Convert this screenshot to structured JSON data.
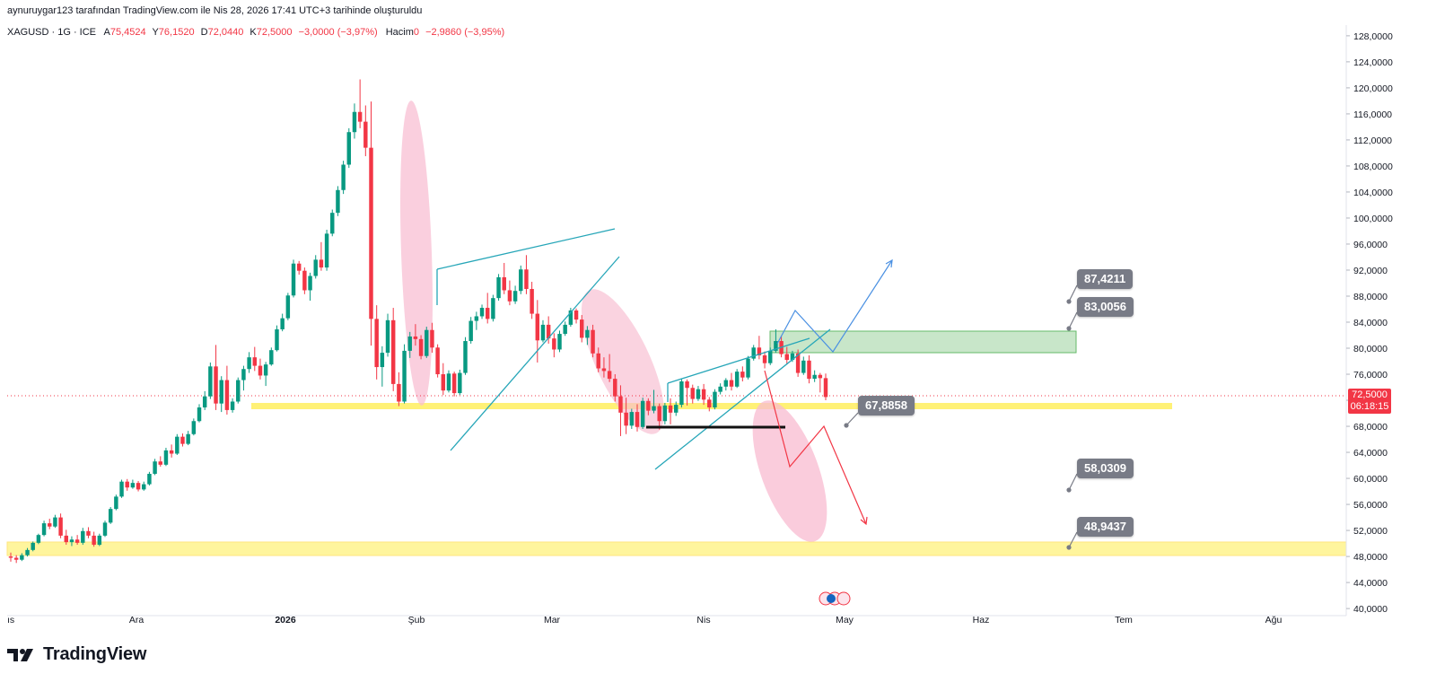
{
  "header": {
    "credit": "aynuruygar123 tarafından TradingView.com ile Nis 28, 2026 17:41 UTC+3 tarihinde oluşturuldu"
  },
  "legend": {
    "symbol": "XAGUSD · 1G · ICE",
    "open_label": "A",
    "open": "75,4524",
    "high_label": "Y",
    "high": "76,1520",
    "low_label": "D",
    "low": "72,0440",
    "close_label": "K",
    "close": "72,5000",
    "change": "−3,0000 (−3,97%)",
    "volume_label": "Hacim",
    "volume": "0",
    "volume_change": "−2,9860 (−3,95%)"
  },
  "price_tag": {
    "price": "72,5000",
    "countdown": "06:18:15"
  },
  "callouts": {
    "c1": "87,4211",
    "c2": "83,0056",
    "c3": "67,8858",
    "c4": "58,0309",
    "c5": "48,9437"
  },
  "brand": {
    "name": "TradingView"
  },
  "colors": {
    "up": "#089981",
    "down": "#f23645",
    "yellow_zone": "#fff176",
    "green_zone": "#c8e6c9",
    "pink_ellipse": "#f8bbd0",
    "trend_teal": "#26a6b8",
    "arrow_blue": "#4a90e2",
    "arrow_red": "#f23645"
  },
  "chart_data": {
    "type": "candlestick",
    "y_ticks": [
      "128,0000",
      "124,0000",
      "120,0000",
      "116,0000",
      "112,0000",
      "108,0000",
      "104,0000",
      "100,0000",
      "96,0000",
      "92,0000",
      "88,0000",
      "84,0000",
      "80,0000",
      "76,0000",
      "72,0000",
      "68,0000",
      "64,0000",
      "60,0000",
      "56,0000",
      "52,0000",
      "48,0000",
      "44,0000",
      "40,0000"
    ],
    "x_ticks": [
      "ıs",
      "Ara",
      "2026",
      "Şub",
      "Mar",
      "Nis",
      "May",
      "Haz",
      "Tem",
      "Ağu"
    ],
    "ylim": [
      38.5,
      129.5
    ],
    "last_price": 72.5,
    "levels": {
      "yellow_upper": 71,
      "yellow_lower": 49,
      "green_zone": [
        79.3,
        82.5
      ]
    },
    "candles": [
      [
        48.0,
        48.6,
        47.2,
        47.8
      ],
      [
        47.8,
        48.2,
        47.0,
        47.5
      ],
      [
        47.5,
        48.5,
        47.3,
        48.2
      ],
      [
        48.2,
        49.3,
        48.0,
        49.0
      ],
      [
        49.0,
        50.3,
        48.8,
        50.1
      ],
      [
        50.1,
        51.5,
        49.9,
        51.3
      ],
      [
        51.3,
        53.5,
        51.1,
        53.1
      ],
      [
        53.1,
        53.8,
        52.2,
        52.6
      ],
      [
        52.6,
        54.4,
        52.4,
        54.0
      ],
      [
        54.0,
        54.6,
        50.8,
        51.2
      ],
      [
        51.2,
        52.1,
        49.8,
        50.2
      ],
      [
        50.2,
        51.1,
        49.6,
        50.6
      ],
      [
        50.6,
        51.3,
        49.8,
        50.1
      ],
      [
        50.1,
        52.4,
        49.8,
        51.9
      ],
      [
        51.9,
        52.5,
        50.8,
        51.2
      ],
      [
        51.2,
        51.8,
        49.5,
        49.8
      ],
      [
        49.8,
        51.5,
        49.6,
        51.2
      ],
      [
        51.2,
        53.5,
        51.0,
        53.2
      ],
      [
        53.2,
        55.6,
        53.0,
        55.3
      ],
      [
        55.3,
        57.5,
        55.1,
        57.2
      ],
      [
        57.2,
        59.8,
        57.0,
        59.5
      ],
      [
        59.5,
        59.9,
        58.1,
        58.6
      ],
      [
        58.6,
        59.8,
        58.4,
        59.3
      ],
      [
        59.3,
        59.6,
        58.0,
        58.3
      ],
      [
        58.3,
        59.5,
        58.1,
        59.1
      ],
      [
        59.1,
        61.0,
        58.9,
        60.7
      ],
      [
        60.7,
        63.0,
        60.5,
        62.6
      ],
      [
        62.6,
        63.4,
        61.8,
        62.1
      ],
      [
        62.1,
        64.7,
        61.9,
        64.3
      ],
      [
        64.3,
        65.2,
        63.2,
        63.8
      ],
      [
        63.8,
        66.8,
        63.6,
        66.4
      ],
      [
        66.4,
        66.9,
        64.9,
        65.3
      ],
      [
        65.3,
        67.3,
        65.1,
        66.8
      ],
      [
        66.8,
        69.2,
        66.6,
        68.8
      ],
      [
        68.8,
        71.4,
        68.6,
        70.9
      ],
      [
        70.9,
        73.4,
        70.5,
        72.6
      ],
      [
        72.6,
        77.8,
        72.2,
        77.2
      ],
      [
        77.2,
        80.5,
        70.5,
        71.5
      ],
      [
        71.5,
        75.7,
        70.2,
        75.1
      ],
      [
        75.1,
        77.3,
        69.8,
        70.5
      ],
      [
        70.5,
        72.3,
        70.1,
        71.8
      ],
      [
        71.8,
        75.5,
        71.5,
        75.1
      ],
      [
        75.1,
        77.3,
        73.5,
        76.8
      ],
      [
        76.8,
        79.4,
        76.2,
        78.6
      ],
      [
        78.6,
        80.2,
        76.5,
        77.3
      ],
      [
        77.3,
        78.4,
        75.2,
        75.8
      ],
      [
        75.8,
        77.9,
        74.2,
        77.5
      ],
      [
        77.5,
        80.1,
        77.3,
        79.7
      ],
      [
        79.7,
        83.5,
        79.5,
        82.9
      ],
      [
        82.9,
        85.3,
        82.6,
        84.6
      ],
      [
        84.6,
        88.5,
        84.3,
        88.1
      ],
      [
        88.1,
        93.6,
        87.8,
        93.0
      ],
      [
        93.0,
        93.4,
        91.3,
        91.9
      ],
      [
        91.9,
        92.4,
        88.3,
        88.9
      ],
      [
        88.9,
        91.6,
        87.3,
        91.1
      ],
      [
        91.1,
        94.3,
        90.7,
        93.6
      ],
      [
        93.6,
        96.3,
        91.9,
        92.4
      ],
      [
        92.4,
        98.2,
        91.9,
        97.6
      ],
      [
        97.6,
        101.3,
        97.2,
        100.8
      ],
      [
        100.8,
        104.9,
        100.3,
        104.3
      ],
      [
        104.3,
        108.8,
        103.7,
        108.2
      ],
      [
        108.2,
        113.8,
        107.7,
        113.2
      ],
      [
        113.2,
        117.6,
        112.2,
        116.3
      ],
      [
        116.3,
        121.3,
        113.8,
        114.8
      ],
      [
        114.8,
        117.3,
        109.5,
        110.8
      ],
      [
        110.8,
        117.9,
        80.4,
        84.5
      ],
      [
        84.5,
        86.6,
        75.2,
        77.1
      ],
      [
        77.1,
        80.3,
        74.1,
        79.3
      ],
      [
        79.3,
        85.3,
        78.7,
        84.3
      ],
      [
        84.3,
        86.2,
        73.4,
        74.5
      ],
      [
        74.5,
        76.3,
        71.1,
        71.8
      ],
      [
        71.8,
        80.6,
        71.5,
        79.6
      ],
      [
        79.6,
        82.5,
        78.5,
        81.8
      ],
      [
        81.8,
        83.7,
        80.4,
        81.4
      ],
      [
        81.4,
        82.0,
        78.3,
        78.8
      ],
      [
        78.8,
        83.3,
        78.5,
        82.8
      ],
      [
        82.8,
        83.9,
        79.3,
        80.1
      ],
      [
        80.1,
        80.6,
        75.5,
        76.0
      ],
      [
        76.0,
        77.7,
        72.8,
        73.5
      ],
      [
        73.5,
        76.6,
        73.2,
        76.1
      ],
      [
        76.1,
        76.4,
        72.6,
        73.1
      ],
      [
        73.1,
        76.7,
        72.8,
        76.2
      ],
      [
        76.2,
        81.7,
        75.9,
        81.1
      ],
      [
        81.1,
        84.8,
        80.7,
        84.2
      ],
      [
        84.2,
        85.6,
        82.8,
        84.9
      ],
      [
        84.9,
        86.7,
        84.5,
        86.2
      ],
      [
        86.2,
        88.5,
        83.8,
        84.5
      ],
      [
        84.5,
        88.2,
        84.1,
        87.7
      ],
      [
        87.7,
        91.4,
        87.3,
        90.9
      ],
      [
        90.9,
        93.1,
        88.3,
        88.9
      ],
      [
        88.9,
        90.4,
        86.6,
        87.2
      ],
      [
        87.2,
        89.6,
        86.8,
        88.8
      ],
      [
        88.8,
        92.7,
        88.3,
        92.1
      ],
      [
        92.1,
        94.3,
        88.3,
        89.1
      ],
      [
        89.1,
        90.2,
        84.5,
        85.3
      ],
      [
        85.3,
        87.4,
        77.8,
        81.2
      ],
      [
        81.2,
        84.3,
        80.9,
        83.6
      ],
      [
        83.6,
        84.9,
        80.7,
        81.5
      ],
      [
        81.5,
        82.3,
        78.6,
        79.8
      ],
      [
        79.8,
        82.7,
        79.4,
        82.2
      ],
      [
        82.2,
        84.1,
        81.9,
        83.6
      ],
      [
        83.6,
        86.2,
        83.3,
        85.8
      ],
      [
        85.8,
        86.1,
        83.8,
        84.4
      ],
      [
        84.4,
        85.1,
        80.9,
        81.6
      ],
      [
        81.6,
        83.4,
        80.5,
        82.8
      ],
      [
        82.8,
        83.6,
        78.6,
        79.2
      ],
      [
        79.2,
        80.1,
        76.3,
        76.9
      ],
      [
        76.9,
        78.6,
        75.5,
        76.5
      ],
      [
        76.5,
        79.1,
        74.8,
        75.3
      ],
      [
        75.3,
        76.0,
        71.8,
        72.6
      ],
      [
        72.6,
        74.3,
        66.5,
        70.1
      ],
      [
        70.1,
        72.4,
        66.8,
        68.1
      ],
      [
        68.1,
        70.7,
        67.6,
        70.2
      ],
      [
        70.2,
        71.4,
        67.2,
        67.9
      ],
      [
        67.9,
        72.4,
        67.6,
        71.9
      ],
      [
        71.9,
        72.3,
        69.7,
        70.4
      ],
      [
        70.4,
        73.6,
        70.0,
        71.1
      ],
      [
        71.1,
        71.5,
        67.5,
        68.8
      ],
      [
        68.8,
        71.6,
        68.3,
        71.2
      ],
      [
        71.2,
        72.3,
        68.3,
        70.1
      ],
      [
        70.1,
        71.8,
        69.6,
        71.3
      ],
      [
        71.3,
        75.3,
        70.9,
        74.9
      ],
      [
        74.9,
        75.2,
        71.2,
        73.9
      ],
      [
        73.9,
        74.4,
        71.5,
        72.2
      ],
      [
        72.2,
        74.2,
        71.9,
        73.7
      ],
      [
        73.7,
        74.5,
        71.3,
        72.1
      ],
      [
        72.1,
        72.5,
        70.3,
        70.9
      ],
      [
        70.9,
        73.7,
        70.6,
        73.3
      ],
      [
        73.3,
        74.6,
        72.9,
        74.1
      ],
      [
        74.1,
        75.4,
        73.5,
        75.1
      ],
      [
        75.1,
        76.2,
        73.5,
        74.1
      ],
      [
        74.1,
        76.8,
        73.9,
        76.4
      ],
      [
        76.4,
        77.2,
        74.9,
        75.5
      ],
      [
        75.5,
        78.8,
        75.2,
        78.4
      ],
      [
        78.4,
        80.5,
        78.1,
        80.1
      ],
      [
        80.1,
        81.9,
        78.3,
        78.9
      ],
      [
        78.9,
        79.5,
        76.9,
        77.7
      ],
      [
        77.7,
        80.1,
        77.4,
        79.6
      ],
      [
        79.6,
        82.9,
        79.3,
        81.1
      ],
      [
        81.1,
        81.8,
        78.6,
        79.1
      ],
      [
        79.1,
        80.2,
        77.5,
        78.2
      ],
      [
        78.2,
        79.6,
        77.9,
        79.2
      ],
      [
        79.2,
        79.8,
        75.6,
        76.2
      ],
      [
        76.2,
        78.7,
        75.9,
        78.1
      ],
      [
        78.1,
        78.9,
        74.6,
        75.3
      ],
      [
        75.3,
        76.6,
        74.8,
        75.9
      ],
      [
        75.9,
        76.2,
        73.2,
        75.4
      ],
      [
        75.4,
        76.1,
        72.0,
        72.5
      ]
    ]
  }
}
